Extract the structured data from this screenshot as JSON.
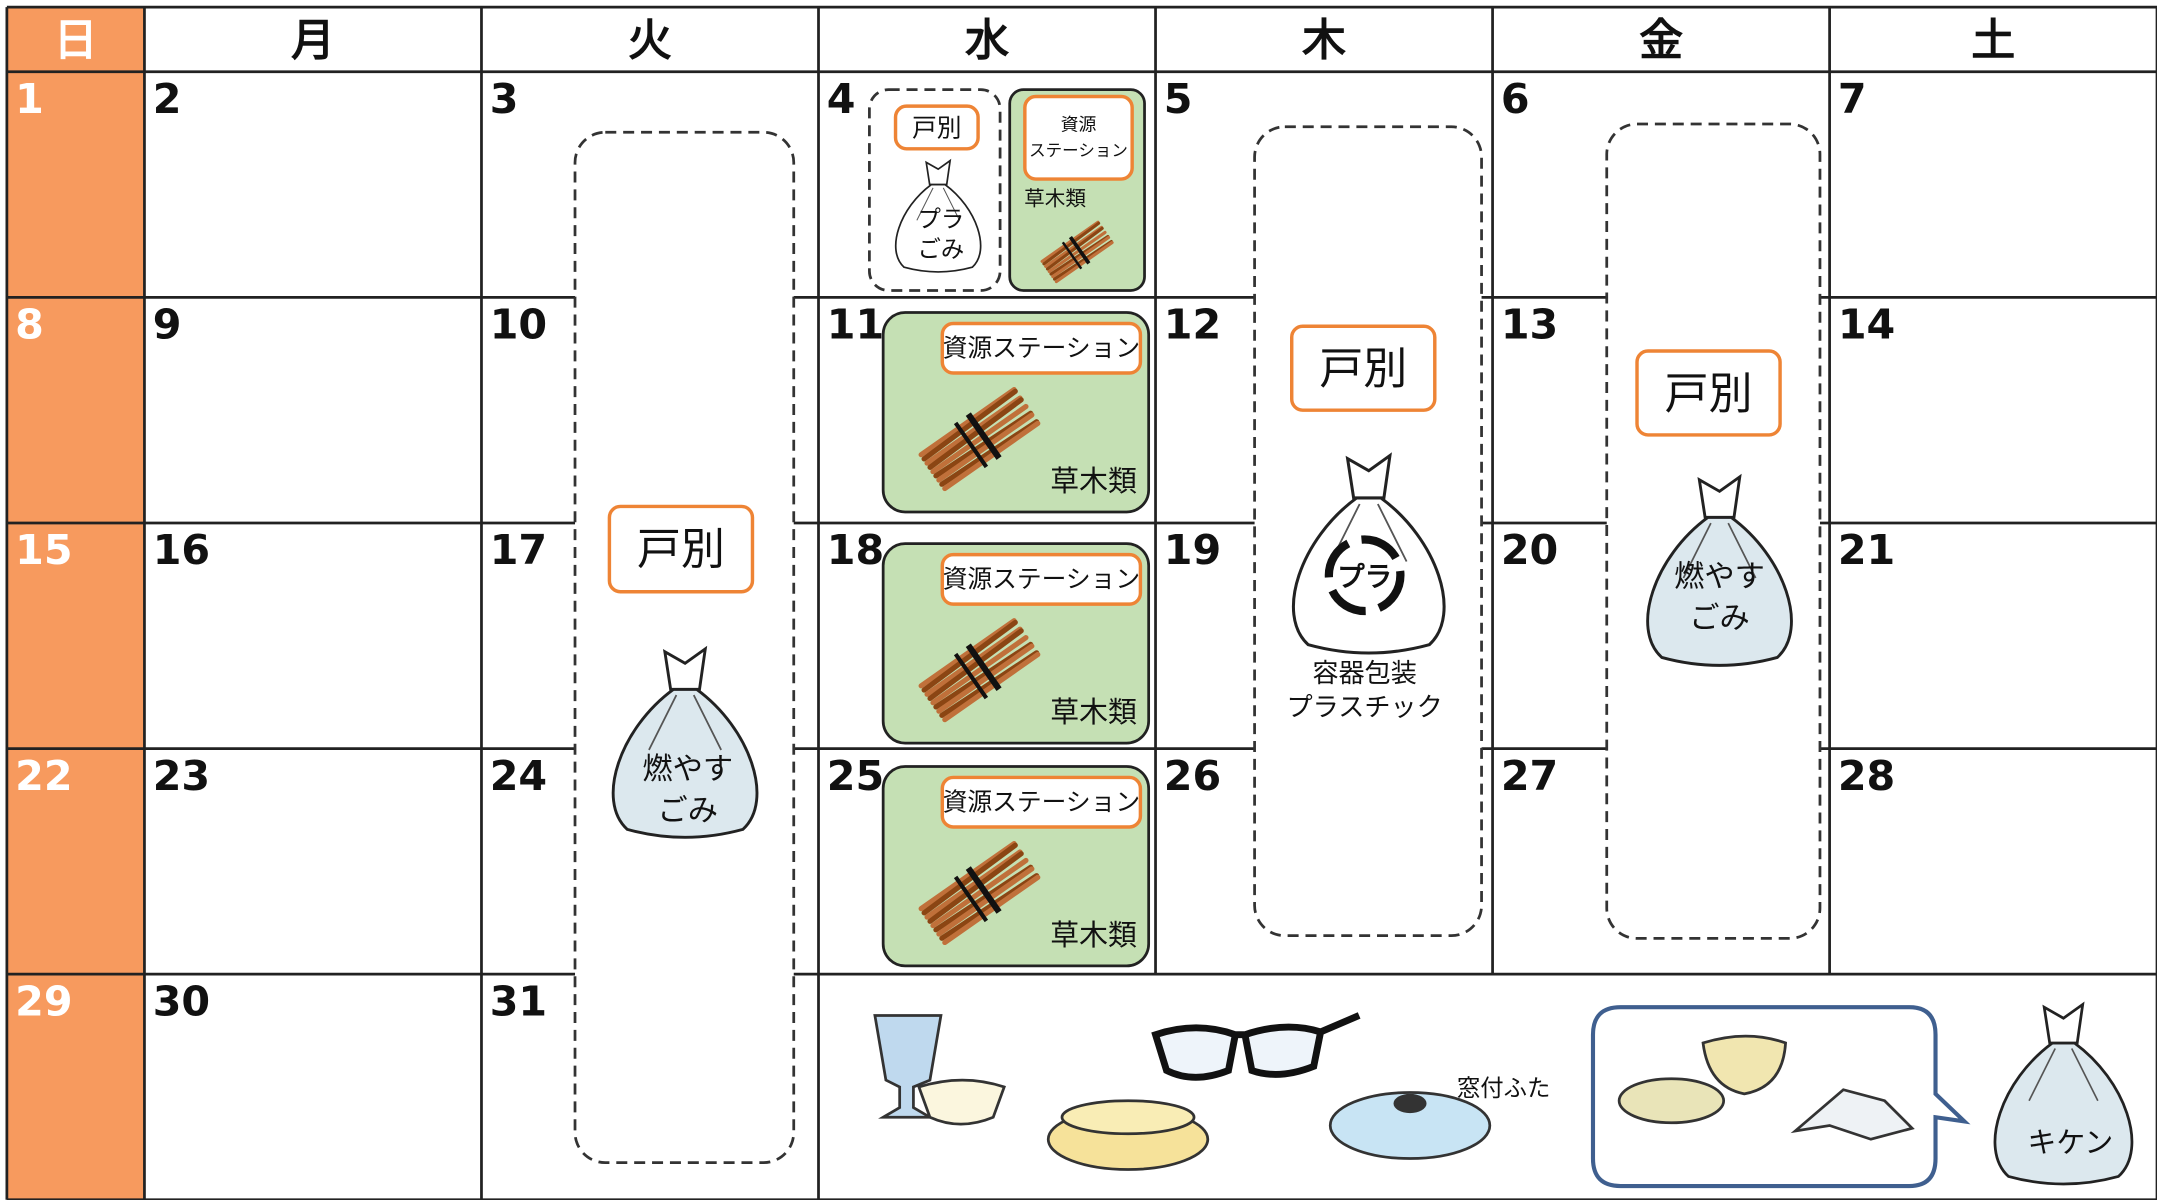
{
  "weekdays": [
    "日",
    "月",
    "火",
    "水",
    "木",
    "金",
    "土"
  ],
  "weeks": [
    [
      1,
      2,
      3,
      4,
      5,
      6,
      7
    ],
    [
      8,
      9,
      10,
      11,
      12,
      13,
      14
    ],
    [
      15,
      16,
      17,
      18,
      19,
      20,
      21
    ],
    [
      22,
      23,
      24,
      25,
      26,
      27,
      28
    ],
    [
      29,
      30,
      31
    ]
  ],
  "tuesday": {
    "method": "戸別",
    "type": [
      "燃やす",
      "ごみ"
    ]
  },
  "wednesday": {
    "first_week": [
      {
        "method": "戸別",
        "type": [
          "プラ",
          "ごみ"
        ]
      },
      {
        "method": [
          "資源",
          "ステーション"
        ],
        "type": "草木類"
      }
    ],
    "other_weeks": [
      {
        "method": "資源ステーション",
        "type": "草木類"
      },
      {
        "method": "資源ステーション",
        "type": "草木類"
      },
      {
        "method": "資源ステーション",
        "type": "草木類"
      }
    ]
  },
  "thursday": {
    "method": "戸別",
    "mark": "プラ",
    "type": [
      "容器包装",
      "プラスチック"
    ]
  },
  "friday": {
    "method": "戸別",
    "type": [
      "燃やす",
      "ごみ"
    ]
  },
  "last_week": {
    "lid_label": "窓付ふた",
    "type": "キケン"
  }
}
